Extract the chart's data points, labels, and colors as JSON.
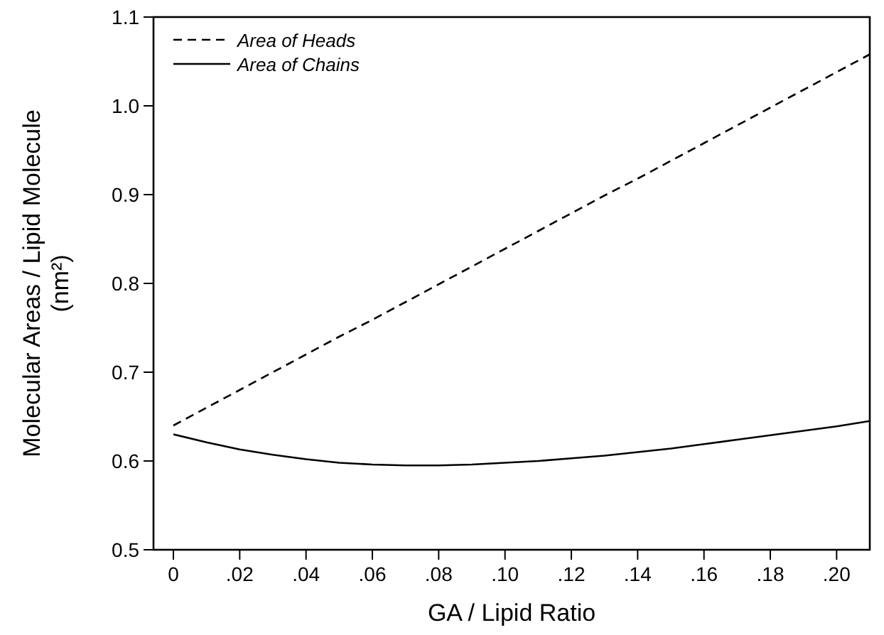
{
  "chart_data": {
    "type": "line",
    "xlabel": "GA / Lipid Ratio",
    "ylabel": "Molecular Areas / Lipid Molecule\n(nm²)",
    "x": [
      0,
      0.01,
      0.02,
      0.03,
      0.04,
      0.05,
      0.06,
      0.07,
      0.08,
      0.09,
      0.1,
      0.11,
      0.12,
      0.13,
      0.14,
      0.15,
      0.16,
      0.17,
      0.18,
      0.19,
      0.2,
      0.21
    ],
    "series": [
      {
        "name": "Area of Heads",
        "color": "#000000",
        "line_style": "dashed",
        "values": [
          0.64,
          0.66,
          0.68,
          0.7,
          0.72,
          0.74,
          0.759,
          0.779,
          0.799,
          0.819,
          0.839,
          0.859,
          0.879,
          0.899,
          0.918,
          0.938,
          0.958,
          0.978,
          0.998,
          1.018,
          1.038,
          1.058
        ]
      },
      {
        "name": "Area of Chains",
        "color": "#000000",
        "line_style": "solid",
        "values": [
          0.63,
          0.621,
          0.613,
          0.607,
          0.602,
          0.598,
          0.596,
          0.595,
          0.595,
          0.596,
          0.598,
          0.6,
          0.603,
          0.606,
          0.61,
          0.614,
          0.619,
          0.624,
          0.629,
          0.634,
          0.639,
          0.645
        ]
      }
    ],
    "xlim": [
      -0.006,
      0.21
    ],
    "ylim": [
      0.5,
      1.1
    ],
    "xticks": [
      0,
      {
        "value": 0.02,
        "label": ".02"
      },
      {
        "value": 0.04,
        "label": ".04"
      },
      {
        "value": 0.06,
        "label": ".06"
      },
      {
        "value": 0.08,
        "label": ".08"
      },
      {
        "value": 0.1,
        "label": ".10"
      },
      {
        "value": 0.12,
        "label": ".12"
      },
      {
        "value": 0.14,
        "label": ".14"
      },
      {
        "value": 0.16,
        "label": ".16"
      },
      {
        "value": 0.18,
        "label": ".18"
      },
      {
        "value": 0.2,
        "label": ".20"
      }
    ],
    "yticks": [
      0.5,
      0.6,
      0.7,
      0.8,
      0.9,
      {
        "value": 1,
        "label": "1.0"
      },
      1.1
    ],
    "legend": "top left",
    "grid": false,
    "marker": "none"
  }
}
